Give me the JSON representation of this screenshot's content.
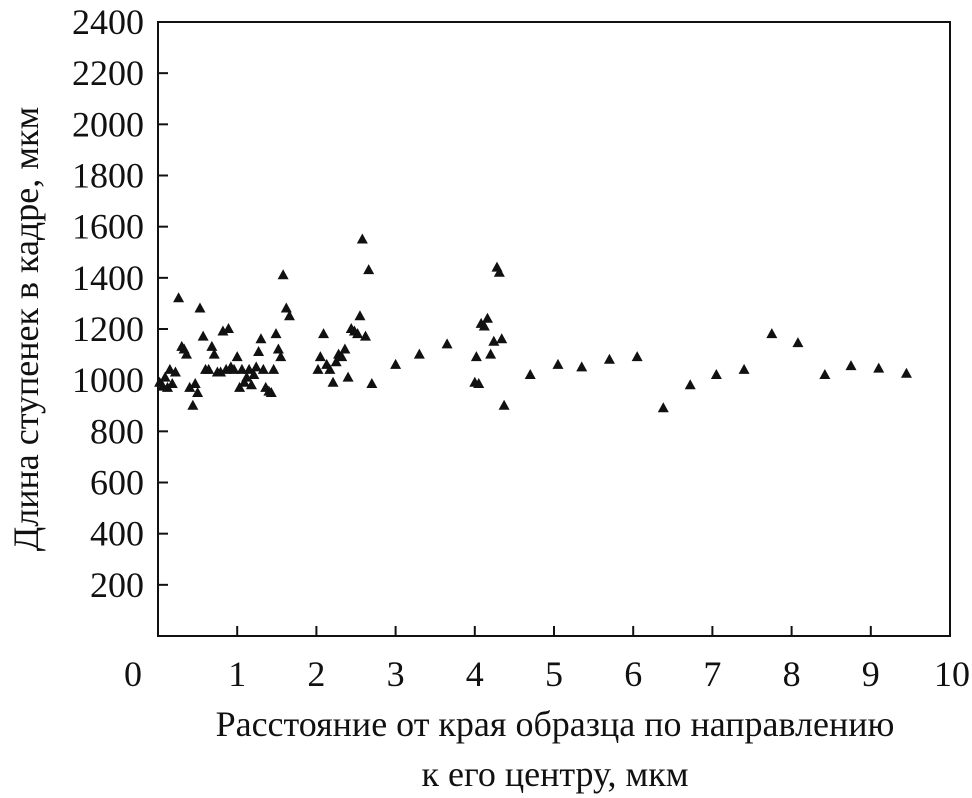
{
  "chart_data": {
    "type": "scatter",
    "title": "",
    "xlabel_lines": [
      "Расстояние от края образца по направлению",
      "к его центру, мкм"
    ],
    "ylabel": "Длина ступенек в кадре, мкм",
    "xlim": [
      0,
      10
    ],
    "ylim": [
      0,
      2400
    ],
    "xticks": [
      0,
      1,
      2,
      3,
      4,
      5,
      6,
      7,
      8,
      9,
      10
    ],
    "yticks": [
      200,
      400,
      600,
      800,
      1000,
      1200,
      1400,
      1600,
      1800,
      2000,
      2200,
      2400
    ],
    "grid": false,
    "legend": "none",
    "marker": "triangle",
    "marker_color": "#111111",
    "points": [
      [
        0.02,
        990
      ],
      [
        0.06,
        975
      ],
      [
        0.09,
        1010
      ],
      [
        0.12,
        970
      ],
      [
        0.15,
        1040
      ],
      [
        0.18,
        985
      ],
      [
        0.22,
        1030
      ],
      [
        0.26,
        1320
      ],
      [
        0.3,
        1130
      ],
      [
        0.33,
        1120
      ],
      [
        0.36,
        1100
      ],
      [
        0.4,
        970
      ],
      [
        0.44,
        900
      ],
      [
        0.47,
        985
      ],
      [
        0.5,
        950
      ],
      [
        0.53,
        1280
      ],
      [
        0.57,
        1170
      ],
      [
        0.6,
        1040
      ],
      [
        0.64,
        1040
      ],
      [
        0.68,
        1130
      ],
      [
        0.71,
        1100
      ],
      [
        0.75,
        1030
      ],
      [
        0.79,
        1030
      ],
      [
        0.82,
        1190
      ],
      [
        0.86,
        1040
      ],
      [
        0.89,
        1200
      ],
      [
        0.92,
        1050
      ],
      [
        0.96,
        1040
      ],
      [
        1.0,
        1090
      ],
      [
        1.03,
        970
      ],
      [
        1.06,
        1040
      ],
      [
        1.09,
        990
      ],
      [
        1.12,
        1010
      ],
      [
        1.15,
        1040
      ],
      [
        1.18,
        980
      ],
      [
        1.21,
        1020
      ],
      [
        1.24,
        1050
      ],
      [
        1.27,
        1110
      ],
      [
        1.3,
        1160
      ],
      [
        1.33,
        1040
      ],
      [
        1.36,
        970
      ],
      [
        1.4,
        955
      ],
      [
        1.43,
        950
      ],
      [
        1.46,
        1040
      ],
      [
        1.49,
        1180
      ],
      [
        1.52,
        1120
      ],
      [
        1.55,
        1090
      ],
      [
        1.58,
        1410
      ],
      [
        1.62,
        1280
      ],
      [
        1.66,
        1250
      ],
      [
        2.02,
        1040
      ],
      [
        2.05,
        1090
      ],
      [
        2.09,
        1180
      ],
      [
        2.13,
        1060
      ],
      [
        2.17,
        1040
      ],
      [
        2.21,
        990
      ],
      [
        2.25,
        1070
      ],
      [
        2.28,
        1100
      ],
      [
        2.32,
        1090
      ],
      [
        2.36,
        1120
      ],
      [
        2.4,
        1010
      ],
      [
        2.44,
        1200
      ],
      [
        2.48,
        1190
      ],
      [
        2.52,
        1180
      ],
      [
        2.55,
        1250
      ],
      [
        2.58,
        1550
      ],
      [
        2.62,
        1170
      ],
      [
        2.66,
        1430
      ],
      [
        2.7,
        985
      ],
      [
        3.0,
        1060
      ],
      [
        3.3,
        1100
      ],
      [
        3.65,
        1140
      ],
      [
        4.0,
        990
      ],
      [
        4.02,
        1090
      ],
      [
        4.05,
        985
      ],
      [
        4.08,
        1220
      ],
      [
        4.12,
        1210
      ],
      [
        4.16,
        1240
      ],
      [
        4.2,
        1100
      ],
      [
        4.24,
        1150
      ],
      [
        4.28,
        1440
      ],
      [
        4.31,
        1420
      ],
      [
        4.34,
        1160
      ],
      [
        4.37,
        900
      ],
      [
        4.7,
        1020
      ],
      [
        5.05,
        1060
      ],
      [
        5.35,
        1050
      ],
      [
        5.7,
        1080
      ],
      [
        6.05,
        1090
      ],
      [
        6.38,
        890
      ],
      [
        6.72,
        980
      ],
      [
        7.05,
        1020
      ],
      [
        7.4,
        1040
      ],
      [
        7.75,
        1180
      ],
      [
        8.08,
        1145
      ],
      [
        8.42,
        1020
      ],
      [
        8.75,
        1055
      ],
      [
        9.1,
        1045
      ],
      [
        9.45,
        1025
      ]
    ]
  }
}
